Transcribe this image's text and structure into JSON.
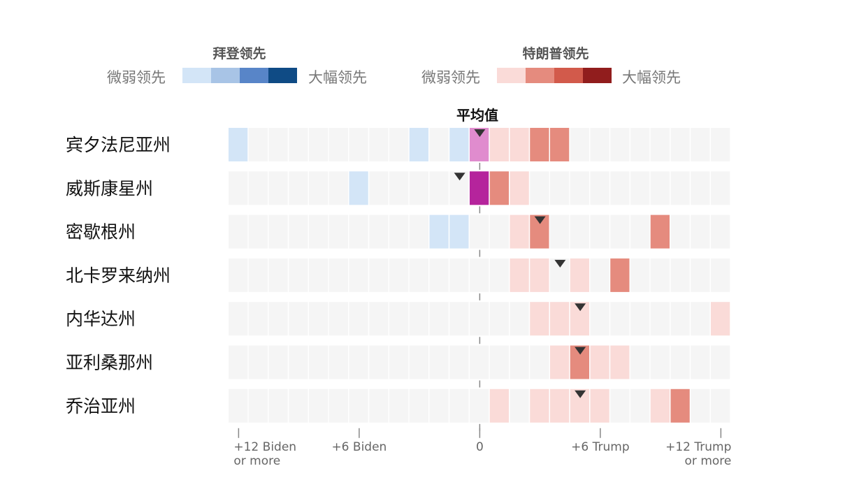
{
  "legend": {
    "biden_title": "拜登领先",
    "trump_title": "特朗普领先",
    "weak_label": "微弱领先",
    "strong_label": "大幅领先",
    "biden_colors": [
      "#d3e5f7",
      "#a8c4e6",
      "#5885c8",
      "#0f4b85"
    ],
    "trump_colors": [
      "#fadbd8",
      "#e58b7e",
      "#d25a4b",
      "#911d1d"
    ]
  },
  "chart_data": {
    "type": "heatmap",
    "title": "",
    "average_label": "平均值",
    "xlabel": "",
    "ylabel": "",
    "x_range": [
      -12,
      12
    ],
    "bin_width": 1,
    "x_ticks": [
      {
        "value": -12,
        "lines": [
          "+12 Biden",
          "or more"
        ]
      },
      {
        "value": -6,
        "lines": [
          "+6 Biden"
        ]
      },
      {
        "value": 0,
        "lines": [
          "0"
        ]
      },
      {
        "value": 6,
        "lines": [
          "+6 Trump"
        ]
      },
      {
        "value": 12,
        "lines": [
          "+12 Trump",
          "or more"
        ]
      }
    ],
    "colors": {
      "empty": "#f5f5f5",
      "biden_light": "#d3e5f7",
      "trump_light": "#fadbd8",
      "trump_medium": "#e58b7e",
      "tossup_light": "#e08cce",
      "tossup_dark": "#b5249c",
      "marker": "#333333",
      "zero_line": "#888888"
    },
    "states": [
      {
        "name": "宾夕法尼亚州",
        "average": 0.0,
        "bins": [
          {
            "margin": -12,
            "shade": "biden_light"
          },
          {
            "margin": -3,
            "shade": "biden_light"
          },
          {
            "margin": -1,
            "shade": "biden_light"
          },
          {
            "margin": 0,
            "shade": "tossup_light"
          },
          {
            "margin": 1,
            "shade": "trump_light"
          },
          {
            "margin": 2,
            "shade": "trump_light"
          },
          {
            "margin": 3,
            "shade": "trump_medium"
          },
          {
            "margin": 4,
            "shade": "trump_medium"
          }
        ]
      },
      {
        "name": "威斯康星州",
        "average": -1.0,
        "bins": [
          {
            "margin": -6,
            "shade": "biden_light"
          },
          {
            "margin": 0,
            "shade": "tossup_dark"
          },
          {
            "margin": 1,
            "shade": "trump_medium"
          },
          {
            "margin": 2,
            "shade": "trump_light"
          }
        ]
      },
      {
        "name": "密歇根州",
        "average": 3.0,
        "bins": [
          {
            "margin": -2,
            "shade": "biden_light"
          },
          {
            "margin": -1,
            "shade": "biden_light"
          },
          {
            "margin": 2,
            "shade": "trump_light"
          },
          {
            "margin": 3,
            "shade": "trump_medium"
          },
          {
            "margin": 9,
            "shade": "trump_medium"
          }
        ]
      },
      {
        "name": "北卡罗来纳州",
        "average": 4.0,
        "bins": [
          {
            "margin": 2,
            "shade": "trump_light"
          },
          {
            "margin": 3,
            "shade": "trump_light"
          },
          {
            "margin": 5,
            "shade": "trump_light"
          },
          {
            "margin": 7,
            "shade": "trump_medium"
          }
        ]
      },
      {
        "name": "内华达州",
        "average": 5.0,
        "bins": [
          {
            "margin": 3,
            "shade": "trump_light"
          },
          {
            "margin": 4,
            "shade": "trump_light"
          },
          {
            "margin": 5,
            "shade": "trump_light"
          },
          {
            "margin": 12,
            "shade": "trump_light"
          }
        ]
      },
      {
        "name": "亚利桑那州",
        "average": 5.0,
        "bins": [
          {
            "margin": 4,
            "shade": "trump_light"
          },
          {
            "margin": 5,
            "shade": "trump_medium"
          },
          {
            "margin": 6,
            "shade": "trump_light"
          },
          {
            "margin": 7,
            "shade": "trump_light"
          }
        ]
      },
      {
        "name": "乔治亚州",
        "average": 5.0,
        "bins": [
          {
            "margin": 1,
            "shade": "trump_light"
          },
          {
            "margin": 3,
            "shade": "trump_light"
          },
          {
            "margin": 4,
            "shade": "trump_light"
          },
          {
            "margin": 5,
            "shade": "trump_light"
          },
          {
            "margin": 6,
            "shade": "trump_light"
          },
          {
            "margin": 9,
            "shade": "trump_light"
          },
          {
            "margin": 10,
            "shade": "trump_medium"
          }
        ]
      }
    ]
  }
}
